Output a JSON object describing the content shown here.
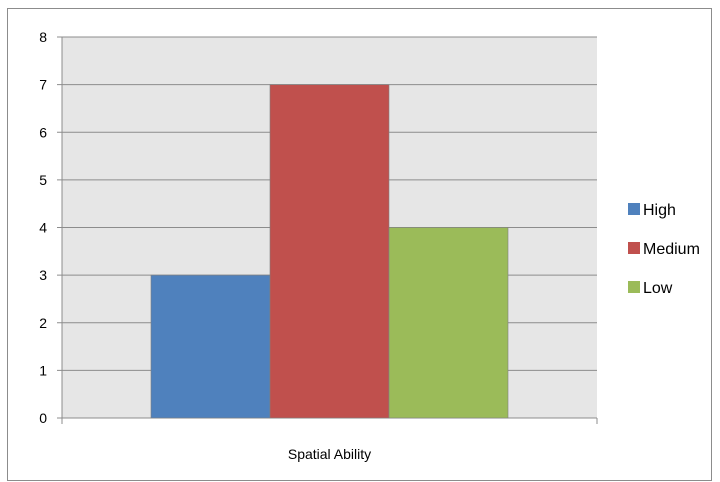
{
  "chart_data": {
    "type": "bar",
    "categories": [
      "Spatial Ability"
    ],
    "series": [
      {
        "name": "High",
        "values": [
          3
        ],
        "color": "#4f81bd"
      },
      {
        "name": "Medium",
        "values": [
          7
        ],
        "color": "#c0504d"
      },
      {
        "name": "Low",
        "values": [
          4
        ],
        "color": "#9bbb59"
      }
    ],
    "title": "",
    "xlabel": "",
    "ylabel": "",
    "ylim": [
      0,
      8
    ],
    "yticks": [
      0,
      1,
      2,
      3,
      4,
      5,
      6,
      7,
      8
    ],
    "grid": true,
    "legend": "right",
    "plot_background": "#e6e6e6"
  }
}
